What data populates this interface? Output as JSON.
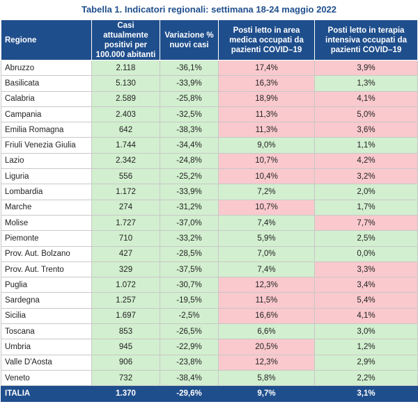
{
  "table": {
    "title": "Tabella 1. Indicatori regionali: settimana 18-24 maggio 2022",
    "columns": [
      "Regione",
      "Casi attualmente positivi per 100.000 abitanti",
      "Variazione % nuovi casi",
      "Posti letto in area medica occupati da pazienti COVID–19",
      "Posti letto in terapia intensiva occupati da pazienti COVID–19"
    ],
    "colors": {
      "green": "#d2efcf",
      "red": "#f9c9cd"
    },
    "rows": [
      [
        "Abruzzo",
        "2.118",
        "-36,1%",
        "17,4%",
        "3,9%"
      ],
      [
        "Basilicata",
        "5.130",
        "-33,9%",
        "16,3%",
        "1,3%"
      ],
      [
        "Calabria",
        "2.589",
        "-25,8%",
        "18,9%",
        "4,1%"
      ],
      [
        "Campania",
        "2.403",
        "-32,5%",
        "11,3%",
        "5,0%"
      ],
      [
        "Emilia Romagna",
        "642",
        "-38,3%",
        "11,3%",
        "3,6%"
      ],
      [
        "Friuli Venezia Giulia",
        "1.744",
        "-34,4%",
        "9,0%",
        "1,1%"
      ],
      [
        "Lazio",
        "2.342",
        "-24,8%",
        "10,7%",
        "4,2%"
      ],
      [
        "Liguria",
        "556",
        "-25,2%",
        "10,4%",
        "3,2%"
      ],
      [
        "Lombardia",
        "1.172",
        "-33,9%",
        "7,2%",
        "2,0%"
      ],
      [
        "Marche",
        "274",
        "-31,2%",
        "10,7%",
        "1,7%"
      ],
      [
        "Molise",
        "1.727",
        "-37,0%",
        "7,4%",
        "7,7%"
      ],
      [
        "Piemonte",
        "710",
        "-33,2%",
        "5,9%",
        "2,5%"
      ],
      [
        "Prov. Aut. Bolzano",
        "427",
        "-28,5%",
        "7,0%",
        "0,0%"
      ],
      [
        "Prov. Aut. Trento",
        "329",
        "-37,5%",
        "7,4%",
        "3,3%"
      ],
      [
        "Puglia",
        "1.072",
        "-30,7%",
        "12,3%",
        "3,4%"
      ],
      [
        "Sardegna",
        "1.257",
        "-19,5%",
        "11,5%",
        "5,4%"
      ],
      [
        "Sicilia",
        "1.697",
        "-2,5%",
        "16,6%",
        "4,1%"
      ],
      [
        "Toscana",
        "853",
        "-26,5%",
        "6,6%",
        "3,0%"
      ],
      [
        "Umbria",
        "945",
        "-22,9%",
        "20,5%",
        "1,2%"
      ],
      [
        "Valle D'Aosta",
        "906",
        "-23,8%",
        "12,3%",
        "2,9%"
      ],
      [
        "Veneto",
        "732",
        "-38,4%",
        "5,8%",
        "2,2%"
      ]
    ],
    "fills": [
      [
        "green",
        "green",
        "red",
        "red"
      ],
      [
        "green",
        "green",
        "red",
        "green"
      ],
      [
        "green",
        "green",
        "red",
        "red"
      ],
      [
        "green",
        "green",
        "red",
        "red"
      ],
      [
        "green",
        "green",
        "red",
        "red"
      ],
      [
        "green",
        "green",
        "green",
        "green"
      ],
      [
        "green",
        "green",
        "red",
        "red"
      ],
      [
        "green",
        "green",
        "red",
        "red"
      ],
      [
        "green",
        "green",
        "green",
        "green"
      ],
      [
        "green",
        "green",
        "red",
        "green"
      ],
      [
        "green",
        "green",
        "green",
        "red"
      ],
      [
        "green",
        "green",
        "green",
        "green"
      ],
      [
        "green",
        "green",
        "green",
        "green"
      ],
      [
        "green",
        "green",
        "green",
        "red"
      ],
      [
        "green",
        "green",
        "red",
        "red"
      ],
      [
        "green",
        "green",
        "red",
        "red"
      ],
      [
        "green",
        "green",
        "red",
        "red"
      ],
      [
        "green",
        "green",
        "green",
        "green"
      ],
      [
        "green",
        "green",
        "red",
        "green"
      ],
      [
        "green",
        "green",
        "red",
        "green"
      ],
      [
        "green",
        "green",
        "green",
        "green"
      ]
    ],
    "total": [
      "ITALIA",
      "1.370",
      "-29,6%",
      "9,7%",
      "3,1%"
    ]
  }
}
